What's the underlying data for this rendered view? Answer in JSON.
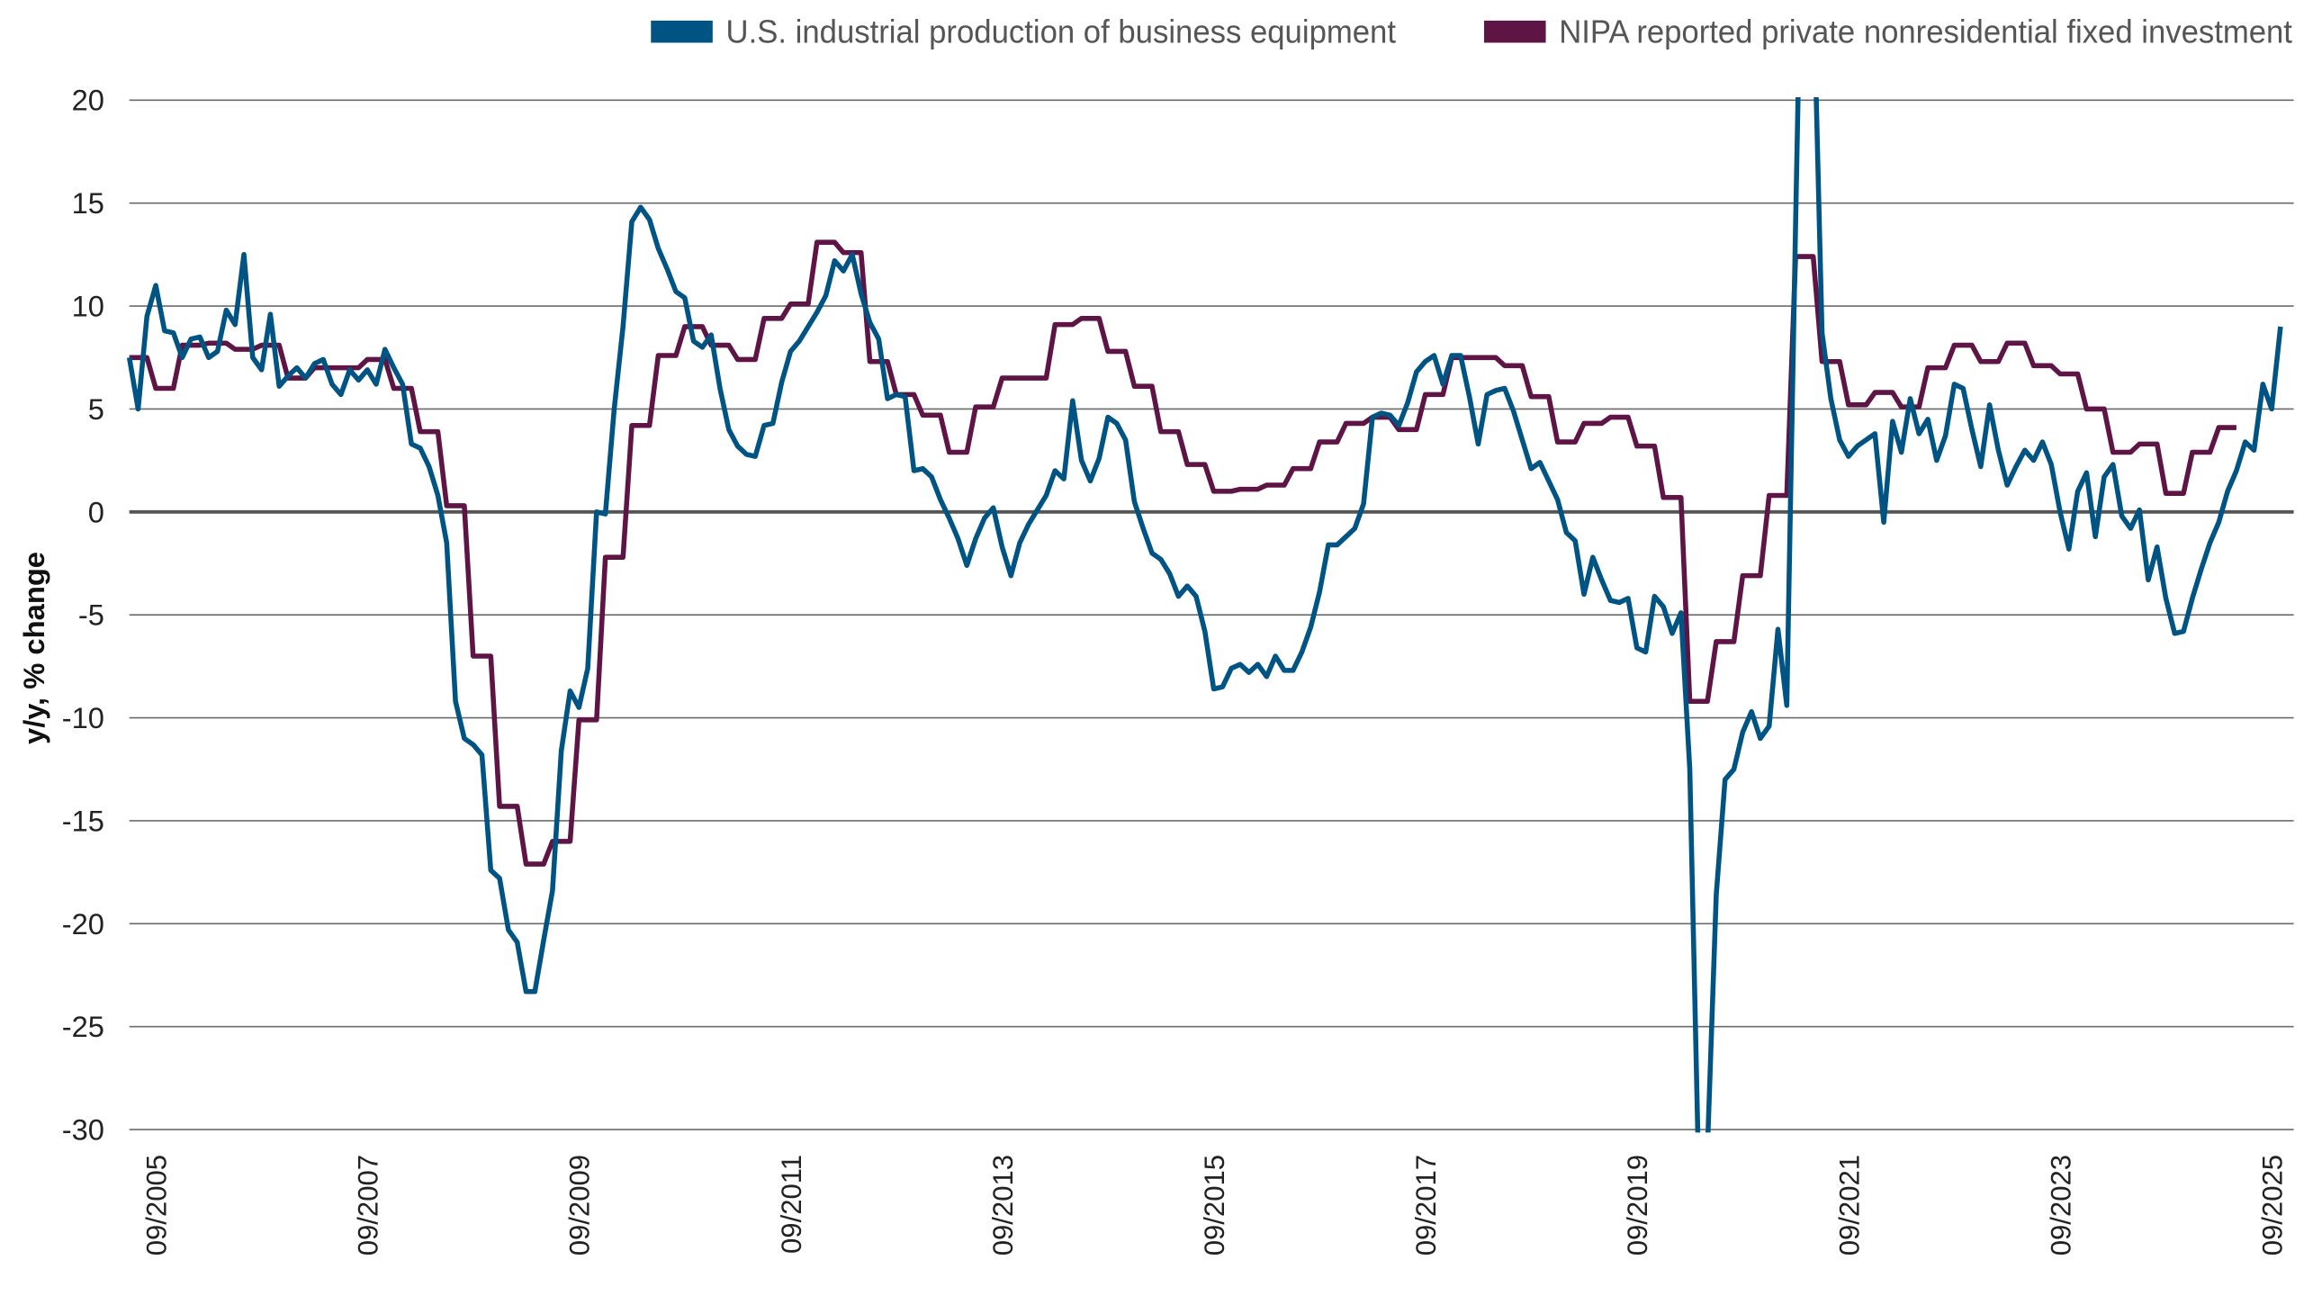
{
  "chart_data": {
    "type": "line",
    "title": "",
    "xlabel": "",
    "ylabel": "y/y, % change",
    "ylim": [
      -30,
      20
    ],
    "yticks": [
      20,
      15,
      10,
      5,
      0,
      -5,
      -10,
      -15,
      -20,
      -25,
      -30
    ],
    "ytick_labels": [
      "20",
      "15",
      "10",
      "5",
      "0",
      "-5",
      "-10",
      "-15",
      "-20",
      "-25",
      "-30"
    ],
    "xtick_labels": [
      "09/2005",
      "09/2007",
      "09/2009",
      "09/2011",
      "09/2013",
      "09/2015",
      "09/2017",
      "09/2019",
      "09/2021",
      "09/2023",
      "09/2025"
    ],
    "grid": "horizontal",
    "legend_position": "top",
    "series": [
      {
        "name": "U.S. industrial production of business equipment",
        "color": "#005484",
        "frequency": "monthly",
        "x": [
          "2005-06",
          "2005-07",
          "2005-08",
          "2005-09",
          "2005-10",
          "2005-11",
          "2005-12",
          "2006-01",
          "2006-02",
          "2006-03",
          "2006-04",
          "2006-05",
          "2006-06",
          "2006-07",
          "2006-08",
          "2006-09",
          "2006-10",
          "2006-11",
          "2006-12",
          "2007-01",
          "2007-02",
          "2007-03",
          "2007-04",
          "2007-05",
          "2007-06",
          "2007-07",
          "2007-08",
          "2007-09",
          "2007-10",
          "2007-11",
          "2007-12",
          "2008-01",
          "2008-02",
          "2008-03",
          "2008-04",
          "2008-05",
          "2008-06",
          "2008-07",
          "2008-08",
          "2008-09",
          "2008-10",
          "2008-11",
          "2008-12",
          "2009-01",
          "2009-02",
          "2009-03",
          "2009-04",
          "2009-05",
          "2009-06",
          "2009-07",
          "2009-08",
          "2009-09",
          "2009-10",
          "2009-11",
          "2009-12",
          "2010-01",
          "2010-02",
          "2010-03",
          "2010-04",
          "2010-05",
          "2010-06",
          "2010-07",
          "2010-08",
          "2010-09",
          "2010-10",
          "2010-11",
          "2010-12",
          "2011-01",
          "2011-02",
          "2011-03",
          "2011-04",
          "2011-05",
          "2011-06",
          "2011-07",
          "2011-08",
          "2011-09",
          "2011-10",
          "2011-11",
          "2011-12",
          "2012-01",
          "2012-02",
          "2012-03",
          "2012-04",
          "2012-05",
          "2012-06",
          "2012-07",
          "2012-08",
          "2012-09",
          "2012-10",
          "2012-11",
          "2012-12",
          "2013-01",
          "2013-02",
          "2013-03",
          "2013-04",
          "2013-05",
          "2013-06",
          "2013-07",
          "2013-08",
          "2013-09",
          "2013-10",
          "2013-11",
          "2013-12",
          "2014-01",
          "2014-02",
          "2014-03",
          "2014-04",
          "2014-05",
          "2014-06",
          "2014-07",
          "2014-08",
          "2014-09",
          "2014-10",
          "2014-11",
          "2014-12",
          "2015-01",
          "2015-02",
          "2015-03",
          "2015-04",
          "2015-05",
          "2015-06",
          "2015-07",
          "2015-08",
          "2015-09",
          "2015-10",
          "2015-11",
          "2015-12",
          "2016-01",
          "2016-02",
          "2016-03",
          "2016-04",
          "2016-05",
          "2016-06",
          "2016-07",
          "2016-08",
          "2016-09",
          "2016-10",
          "2016-11",
          "2016-12",
          "2017-01",
          "2017-02",
          "2017-03",
          "2017-04",
          "2017-05",
          "2017-06",
          "2017-07",
          "2017-08",
          "2017-09",
          "2017-10",
          "2017-11",
          "2017-12",
          "2018-01",
          "2018-02",
          "2018-03",
          "2018-04",
          "2018-05",
          "2018-06",
          "2018-07",
          "2018-08",
          "2018-09",
          "2018-10",
          "2018-11",
          "2018-12",
          "2019-01",
          "2019-02",
          "2019-03",
          "2019-04",
          "2019-05",
          "2019-06",
          "2019-07",
          "2019-08",
          "2019-09",
          "2019-10",
          "2019-11",
          "2019-12",
          "2020-01",
          "2020-02",
          "2020-03",
          "2020-04",
          "2020-05",
          "2020-06",
          "2020-07",
          "2020-08",
          "2020-09",
          "2020-10",
          "2020-11",
          "2020-12",
          "2021-01",
          "2021-02",
          "2021-03",
          "2021-04",
          "2021-05",
          "2021-06",
          "2021-07",
          "2021-08",
          "2021-09",
          "2021-10",
          "2021-11",
          "2021-12",
          "2022-01",
          "2022-02",
          "2022-03",
          "2022-04",
          "2022-05",
          "2022-06",
          "2022-07",
          "2022-08",
          "2022-09",
          "2022-10",
          "2022-11",
          "2022-12",
          "2023-01",
          "2023-02",
          "2023-03",
          "2023-04",
          "2023-05",
          "2023-06",
          "2023-07",
          "2023-08",
          "2023-09",
          "2023-10",
          "2023-11",
          "2023-12",
          "2024-01",
          "2024-02",
          "2024-03",
          "2024-04",
          "2024-05",
          "2024-06",
          "2024-07",
          "2024-08",
          "2024-09",
          "2024-10",
          "2024-11",
          "2024-12",
          "2025-01",
          "2025-02",
          "2025-03",
          "2025-04",
          "2025-05",
          "2025-06",
          "2025-07",
          "2025-08",
          "2025-09",
          "2025-10"
        ],
        "y": [
          7.5,
          5.0,
          9.5,
          11.0,
          8.8,
          8.7,
          7.5,
          8.4,
          8.5,
          7.5,
          7.8,
          9.8,
          9.1,
          12.5,
          7.5,
          6.9,
          9.6,
          6.1,
          6.6,
          7.0,
          6.5,
          7.2,
          7.4,
          6.2,
          5.7,
          6.9,
          6.4,
          6.9,
          6.2,
          7.9,
          7.0,
          6.2,
          3.3,
          3.1,
          2.2,
          0.8,
          -1.5,
          -9.2,
          -11.0,
          -11.3,
          -11.8,
          -17.4,
          -17.8,
          -20.3,
          -20.9,
          -23.3,
          -23.3,
          -20.8,
          -18.4,
          -11.6,
          -8.7,
          -9.5,
          -7.6,
          0.0,
          -0.1,
          5.0,
          9.0,
          14.1,
          14.8,
          14.2,
          12.8,
          11.8,
          10.7,
          10.4,
          8.3,
          8.0,
          8.6,
          6.0,
          4.0,
          3.2,
          2.8,
          2.7,
          4.2,
          4.3,
          6.3,
          7.8,
          8.3,
          9.0,
          9.7,
          10.5,
          12.2,
          11.7,
          12.5,
          10.6,
          9.2,
          8.4,
          5.5,
          5.7,
          5.6,
          2.0,
          2.1,
          1.7,
          0.6,
          -0.3,
          -1.3,
          -2.6,
          -1.3,
          -0.3,
          0.2,
          -1.7,
          -3.1,
          -1.5,
          -0.6,
          0.1,
          0.8,
          2.0,
          1.6,
          5.4,
          2.5,
          1.5,
          2.6,
          4.6,
          4.3,
          3.5,
          0.5,
          -0.8,
          -2.0,
          -2.3,
          -3.0,
          -4.1,
          -3.6,
          -4.1,
          -5.8,
          -8.6,
          -8.5,
          -7.6,
          -7.4,
          -7.8,
          -7.4,
          -8.0,
          -7.0,
          -7.7,
          -7.7,
          -6.8,
          -5.6,
          -3.9,
          -1.6,
          -1.6,
          -1.2,
          -0.8,
          0.4,
          4.6,
          4.8,
          4.7,
          4.2,
          5.3,
          6.8,
          7.3,
          7.6,
          6.2,
          7.6,
          7.6,
          5.6,
          3.3,
          5.7,
          5.9,
          6.0,
          4.9,
          3.5,
          2.1,
          2.4,
          1.5,
          0.6,
          -1.0,
          -1.4,
          -4.0,
          -2.2,
          -3.3,
          -4.3,
          -4.4,
          -4.2,
          -6.6,
          -6.8,
          -4.1,
          -4.6,
          -5.9,
          -4.9,
          -12.5,
          -32.0,
          -31.0,
          -18.6,
          -13.0,
          -12.5,
          -10.7,
          -9.7,
          -11.0,
          -10.4,
          -5.7,
          -9.4,
          14.0,
          36.0,
          26.0,
          8.7,
          5.5,
          3.5,
          2.7,
          3.2,
          3.5,
          3.8,
          -0.5,
          4.4,
          2.9,
          5.5,
          3.8,
          4.5,
          2.5,
          3.7,
          6.2,
          6.0,
          4.0,
          2.2,
          5.2,
          3.0,
          1.3,
          2.2,
          3.0,
          2.5,
          3.4,
          2.3,
          0.0,
          -1.8,
          1.0,
          1.9,
          -1.2,
          1.7,
          2.3,
          -0.2,
          -0.8,
          0.1,
          -3.3,
          -1.7,
          -4.2,
          -5.9,
          -5.8,
          -4.2,
          -2.8,
          -1.5,
          -0.5,
          1.0,
          2.0,
          3.4,
          3.0,
          6.2,
          5.0,
          9.0
        ]
      },
      {
        "name": "NIPA reported private nonresidential fixed investment",
        "color": "#5f1446",
        "frequency": "quarterly",
        "x": [
          "2005Q3",
          "2005Q4",
          "2006Q1",
          "2006Q2",
          "2006Q3",
          "2006Q4",
          "2007Q1",
          "2007Q2",
          "2007Q3",
          "2007Q4",
          "2008Q1",
          "2008Q2",
          "2008Q3",
          "2008Q4",
          "2009Q1",
          "2009Q2",
          "2009Q3",
          "2009Q4",
          "2010Q1",
          "2010Q2",
          "2010Q3",
          "2010Q4",
          "2011Q1",
          "2011Q2",
          "2011Q3",
          "2011Q4",
          "2012Q1",
          "2012Q2",
          "2012Q3",
          "2012Q4",
          "2013Q1",
          "2013Q2",
          "2013Q3",
          "2013Q4",
          "2014Q1",
          "2014Q2",
          "2014Q3",
          "2014Q4",
          "2015Q1",
          "2015Q2",
          "2015Q3",
          "2015Q4",
          "2016Q1",
          "2016Q2",
          "2016Q3",
          "2016Q4",
          "2017Q1",
          "2017Q2",
          "2017Q3",
          "2017Q4",
          "2018Q1",
          "2018Q2",
          "2018Q3",
          "2018Q4",
          "2019Q1",
          "2019Q2",
          "2019Q3",
          "2019Q4",
          "2020Q1",
          "2020Q2",
          "2020Q3",
          "2020Q4",
          "2021Q1",
          "2021Q2",
          "2021Q3",
          "2021Q4",
          "2022Q1",
          "2022Q2",
          "2022Q3",
          "2022Q4",
          "2023Q1",
          "2023Q2",
          "2023Q3",
          "2023Q4",
          "2024Q1",
          "2024Q2",
          "2024Q3",
          "2024Q4",
          "2025Q1",
          "2025Q2"
        ],
        "y": [
          7.5,
          6.0,
          8.1,
          8.2,
          7.9,
          8.1,
          6.5,
          7.0,
          7.0,
          7.4,
          6.0,
          3.9,
          0.3,
          -7.0,
          -14.3,
          -17.1,
          -16.0,
          -10.1,
          -2.2,
          4.2,
          7.6,
          9.0,
          8.1,
          7.4,
          9.4,
          10.1,
          13.1,
          12.6,
          7.3,
          5.7,
          4.7,
          2.9,
          5.1,
          6.5,
          6.5,
          9.1,
          9.4,
          7.8,
          6.1,
          3.9,
          2.3,
          1.0,
          1.1,
          1.3,
          2.1,
          3.4,
          4.3,
          4.6,
          4.0,
          5.7,
          7.5,
          7.5,
          7.1,
          5.6,
          3.4,
          4.3,
          4.6,
          3.2,
          0.7,
          -9.2,
          -6.3,
          -3.1,
          0.8,
          12.4,
          7.3,
          5.2,
          5.8,
          5.1,
          7.0,
          8.1,
          7.3,
          8.2,
          7.1,
          6.7,
          5.0,
          2.9,
          3.3,
          0.9,
          2.9,
          4.1
        ]
      }
    ]
  }
}
